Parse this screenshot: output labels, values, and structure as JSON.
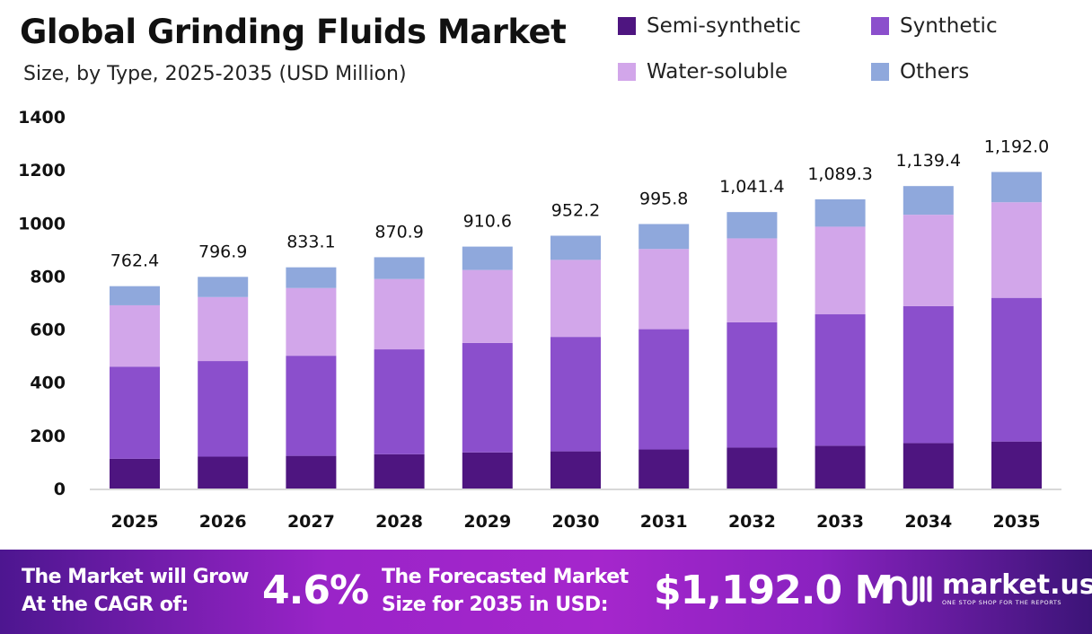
{
  "chart_data": {
    "type": "bar",
    "stacked": true,
    "title": "Global Grinding Fluids Market",
    "subtitle": "Size, by Type, 2025-2035 (USD Million)",
    "categories": [
      "2025",
      "2026",
      "2027",
      "2028",
      "2029",
      "2030",
      "2031",
      "2032",
      "2033",
      "2034",
      "2035"
    ],
    "series": [
      {
        "name": "Semi-synthetic",
        "color": "#4e1580",
        "values": [
          112,
          120,
          123,
          129,
          136,
          140,
          147,
          154,
          161,
          171,
          177
        ]
      },
      {
        "name": "Synthetic",
        "color": "#8b4fcc",
        "values": [
          347,
          360,
          377,
          395,
          412,
          431,
          453,
          472,
          495,
          516,
          541
        ]
      },
      {
        "name": "Water-soluble",
        "color": "#d2a6ea",
        "values": [
          231,
          241,
          255,
          265,
          275,
          290,
          302,
          316,
          330,
          344,
          360
        ]
      },
      {
        "name": "Others",
        "color": "#8fa8dc",
        "values": [
          72,
          76,
          78,
          82,
          88,
          91,
          94,
          99,
          103,
          108,
          114
        ]
      }
    ],
    "totals": [
      "762.4",
      "796.9",
      "833.1",
      "870.9",
      "910.6",
      "952.2",
      "995.8",
      "1,041.4",
      "1,089.3",
      "1,139.4",
      "1,192.0"
    ],
    "yticks": [
      "0",
      "200",
      "400",
      "600",
      "800",
      "1000",
      "1200",
      "1400"
    ],
    "ylim": [
      0,
      1400
    ],
    "grid": false,
    "legend": "top-right"
  },
  "banner": {
    "cagr_text_1": "The Market will Grow",
    "cagr_text_2": "At the CAGR of:",
    "cagr_value": "4.6%",
    "forecast_text_1": "The Forecasted Market",
    "forecast_text_2": "Size for 2035 in USD:",
    "forecast_value": "$1,192.0 M",
    "logo_name": "market.us",
    "logo_tagline": "ONE STOP SHOP FOR THE REPORTS"
  }
}
